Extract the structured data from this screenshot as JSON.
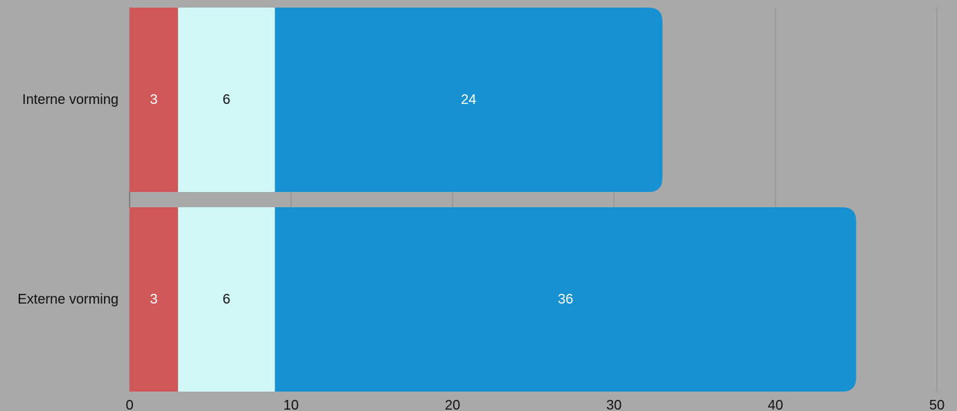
{
  "chart_data": {
    "type": "bar",
    "orientation": "horizontal",
    "stacked": true,
    "title": "",
    "xlabel": "",
    "ylabel": "",
    "categories": [
      "Interne vorming",
      "Externe vorming"
    ],
    "series": [
      {
        "values": [
          3,
          3
        ],
        "color": "#d05757",
        "label_color": "#ffffff"
      },
      {
        "values": [
          6,
          6
        ],
        "color": "#d2f7f7",
        "label_color": "#111111"
      },
      {
        "values": [
          24,
          36
        ],
        "color": "#1791d1",
        "label_color": "#ffffff"
      }
    ],
    "xlim": [
      0,
      50
    ],
    "xticks": [
      "0",
      "10",
      "20",
      "30",
      "40",
      "50"
    ],
    "grid": true,
    "legend": "none",
    "colors": {
      "background": "#a9a9a9",
      "gridline": "#8c8c8c",
      "text": "#111111"
    }
  }
}
